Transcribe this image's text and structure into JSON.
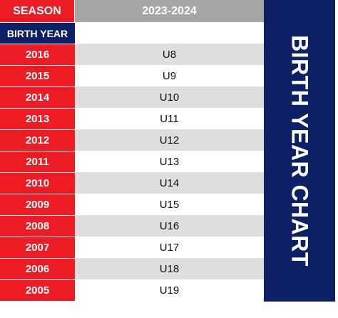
{
  "header": {
    "season_label": "SEASON",
    "season_value": "2023-2024"
  },
  "subheader": {
    "birth_year_label": "BIRTH YEAR"
  },
  "rows": [
    {
      "year": "2016",
      "age": "U8"
    },
    {
      "year": "2015",
      "age": "U9"
    },
    {
      "year": "2014",
      "age": "U10"
    },
    {
      "year": "2013",
      "age": "U11"
    },
    {
      "year": "2012",
      "age": "U12"
    },
    {
      "year": "2011",
      "age": "U13"
    },
    {
      "year": "2010",
      "age": "U14"
    },
    {
      "year": "2009",
      "age": "U15"
    },
    {
      "year": "2008",
      "age": "U16"
    },
    {
      "year": "2007",
      "age": "U17"
    },
    {
      "year": "2006",
      "age": "U18"
    },
    {
      "year": "2005",
      "age": "U19"
    }
  ],
  "side_title": "BIRTH YEAR CHART",
  "colors": {
    "red": "#ed1c24",
    "navy": "#0c2066",
    "gray": "#dedede",
    "header_gray": "#a6a6a6"
  }
}
